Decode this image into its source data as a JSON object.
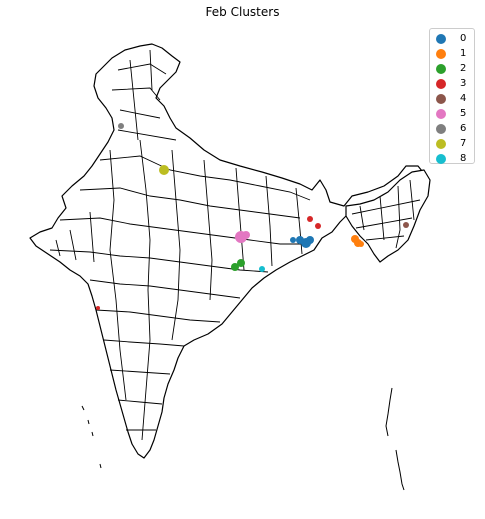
{
  "title": "Feb Clusters",
  "legend": [
    {
      "label": "0",
      "color": "#1f77b4"
    },
    {
      "label": "1",
      "color": "#ff7f0e"
    },
    {
      "label": "2",
      "color": "#2ca02c"
    },
    {
      "label": "3",
      "color": "#d62728"
    },
    {
      "label": "4",
      "color": "#8c564b"
    },
    {
      "label": "5",
      "color": "#e377c2"
    },
    {
      "label": "6",
      "color": "#7f7f7f"
    },
    {
      "label": "7",
      "color": "#bcbd22"
    },
    {
      "label": "8",
      "color": "#17becf"
    }
  ]
}
